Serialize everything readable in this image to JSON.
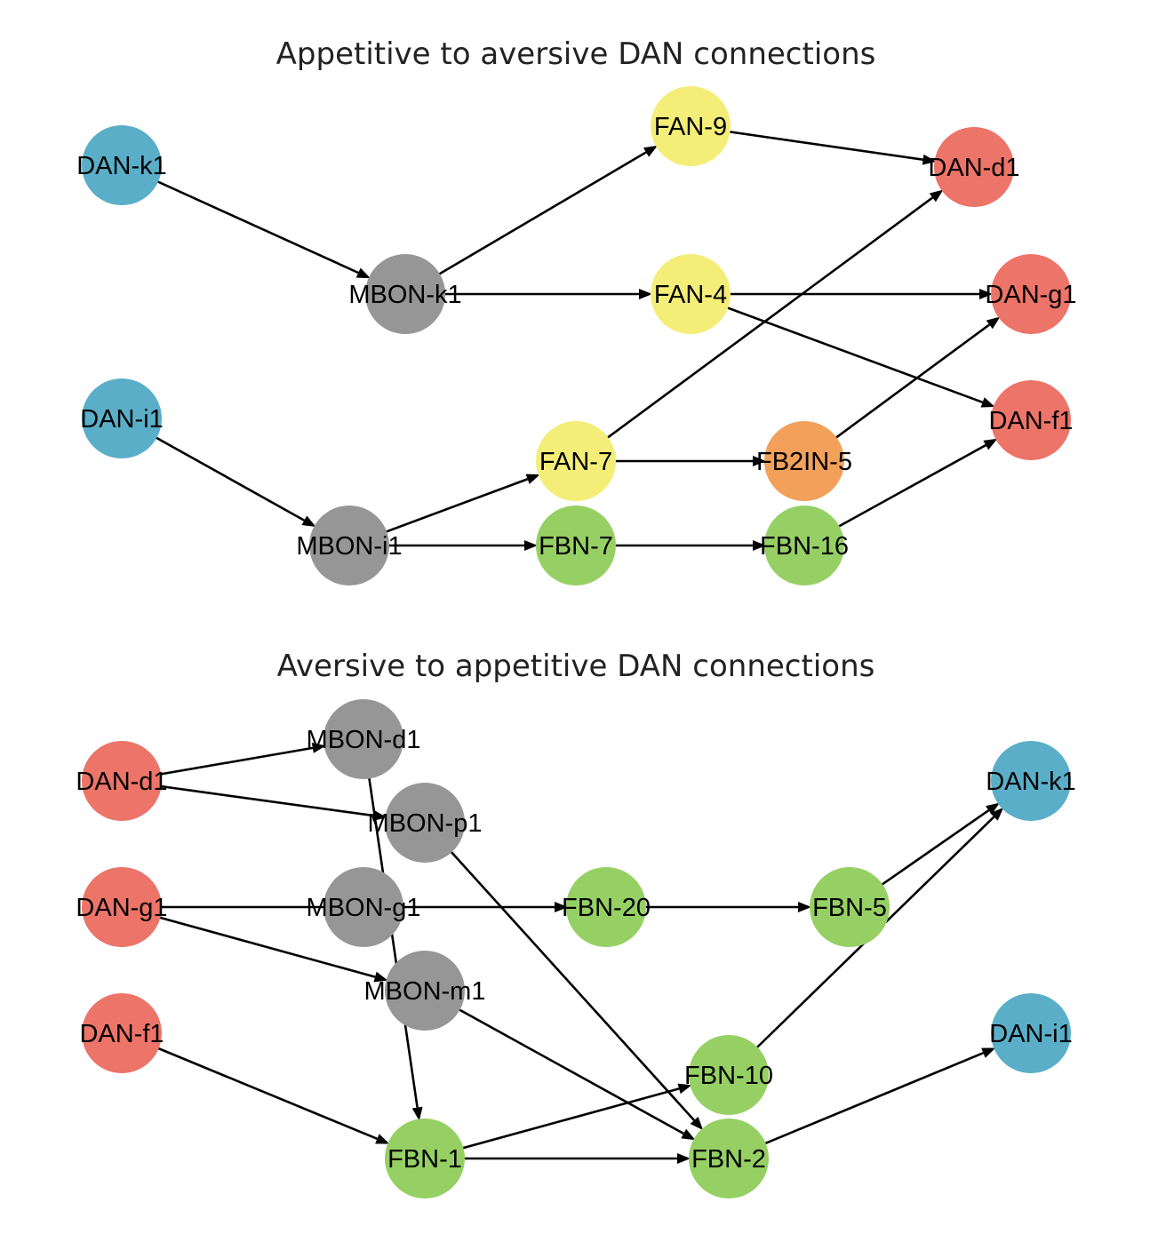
{
  "colors": {
    "appetitive_dan": "#5aaec8",
    "aversive_dan": "#ec7468",
    "mbon": "#969696",
    "fan": "#f4ee78",
    "fbn": "#96d064",
    "fb2in": "#f2a05a",
    "edge": "#000000"
  },
  "panels": [
    {
      "id": "top",
      "title": "Appetitive to aversive DAN connections",
      "nodes": [
        {
          "id": "DAN-k1",
          "label": "DAN-k1",
          "type": "appetitive_dan"
        },
        {
          "id": "DAN-i1",
          "label": "DAN-i1",
          "type": "appetitive_dan"
        },
        {
          "id": "MBON-k1",
          "label": "MBON-k1",
          "type": "mbon"
        },
        {
          "id": "MBON-i1",
          "label": "MBON-i1",
          "type": "mbon"
        },
        {
          "id": "FAN-9",
          "label": "FAN-9",
          "type": "fan"
        },
        {
          "id": "FAN-4",
          "label": "FAN-4",
          "type": "fan"
        },
        {
          "id": "FAN-7",
          "label": "FAN-7",
          "type": "fan"
        },
        {
          "id": "FBN-7",
          "label": "FBN-7",
          "type": "fbn"
        },
        {
          "id": "FB2IN-5",
          "label": "FB2IN-5",
          "type": "fb2in"
        },
        {
          "id": "FBN-16",
          "label": "FBN-16",
          "type": "fbn"
        },
        {
          "id": "DAN-d1",
          "label": "DAN-d1",
          "type": "aversive_dan"
        },
        {
          "id": "DAN-g1",
          "label": "DAN-g1",
          "type": "aversive_dan"
        },
        {
          "id": "DAN-f1",
          "label": "DAN-f1",
          "type": "aversive_dan"
        }
      ],
      "edges": [
        [
          "DAN-k1",
          "MBON-k1"
        ],
        [
          "MBON-k1",
          "FAN-9"
        ],
        [
          "MBON-k1",
          "FAN-4"
        ],
        [
          "FAN-9",
          "DAN-d1"
        ],
        [
          "FAN-4",
          "DAN-g1"
        ],
        [
          "FAN-4",
          "DAN-f1"
        ],
        [
          "DAN-i1",
          "MBON-i1"
        ],
        [
          "MBON-i1",
          "FAN-7"
        ],
        [
          "MBON-i1",
          "FBN-7"
        ],
        [
          "FAN-7",
          "DAN-d1"
        ],
        [
          "FAN-7",
          "FB2IN-5"
        ],
        [
          "FB2IN-5",
          "DAN-g1"
        ],
        [
          "FBN-7",
          "FBN-16"
        ],
        [
          "FBN-16",
          "DAN-f1"
        ]
      ]
    },
    {
      "id": "bottom",
      "title": "Aversive to appetitive DAN connections",
      "nodes": [
        {
          "id": "DAN-d1",
          "label": "DAN-d1",
          "type": "aversive_dan"
        },
        {
          "id": "DAN-g1",
          "label": "DAN-g1",
          "type": "aversive_dan"
        },
        {
          "id": "DAN-f1",
          "label": "DAN-f1",
          "type": "aversive_dan"
        },
        {
          "id": "MBON-d1",
          "label": "MBON-d1",
          "type": "mbon"
        },
        {
          "id": "MBON-p1",
          "label": "MBON-p1",
          "type": "mbon"
        },
        {
          "id": "MBON-g1",
          "label": "MBON-g1",
          "type": "mbon"
        },
        {
          "id": "MBON-m1",
          "label": "MBON-m1",
          "type": "mbon"
        },
        {
          "id": "FBN-20",
          "label": "FBN-20",
          "type": "fbn"
        },
        {
          "id": "FBN-5",
          "label": "FBN-5",
          "type": "fbn"
        },
        {
          "id": "FBN-10",
          "label": "FBN-10",
          "type": "fbn"
        },
        {
          "id": "FBN-1",
          "label": "FBN-1",
          "type": "fbn"
        },
        {
          "id": "FBN-2",
          "label": "FBN-2",
          "type": "fbn"
        },
        {
          "id": "DAN-k1",
          "label": "DAN-k1",
          "type": "appetitive_dan"
        },
        {
          "id": "DAN-i1",
          "label": "DAN-i1",
          "type": "appetitive_dan"
        }
      ],
      "edges": [
        [
          "DAN-d1",
          "MBON-d1"
        ],
        [
          "DAN-d1",
          "MBON-p1"
        ],
        [
          "DAN-g1",
          "FBN-20"
        ],
        [
          "DAN-g1",
          "MBON-m1"
        ],
        [
          "DAN-f1",
          "FBN-1"
        ],
        [
          "MBON-d1",
          "FBN-1"
        ],
        [
          "MBON-p1",
          "FBN-2"
        ],
        [
          "MBON-m1",
          "FBN-2"
        ],
        [
          "FBN-20",
          "FBN-5"
        ],
        [
          "FBN-5",
          "DAN-k1"
        ],
        [
          "FBN-10",
          "DAN-k1"
        ],
        [
          "FBN-1",
          "FBN-10"
        ],
        [
          "FBN-1",
          "FBN-2"
        ],
        [
          "FBN-2",
          "DAN-i1"
        ]
      ]
    }
  ]
}
